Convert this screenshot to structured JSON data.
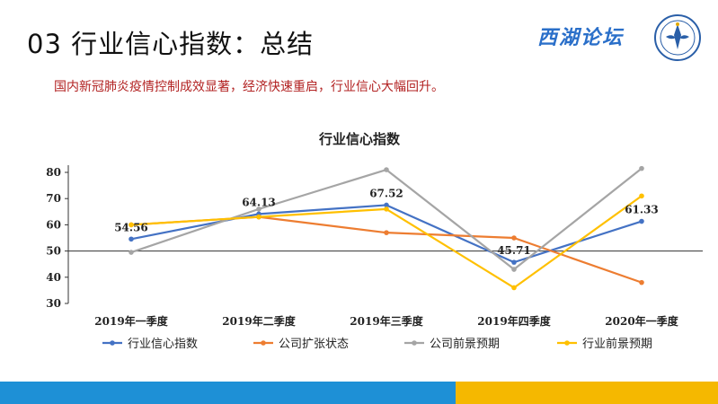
{
  "slide": {
    "title": "03 行业信心指数：总结",
    "subtitle": "国内新冠肺炎疫情控制成效显著，经济快速重启，行业信心大幅回升。",
    "brand": "西湖论坛"
  },
  "chart_data": {
    "type": "line",
    "title": "行业信心指数",
    "categories": [
      "2019年一季度",
      "2019年二季度",
      "2019年三季度",
      "2019年四季度",
      "2020年一季度"
    ],
    "ylim": [
      30,
      80
    ],
    "yticks": [
      30,
      40,
      50,
      60,
      70,
      80
    ],
    "grid": false,
    "legend_position": "bottom",
    "series": [
      {
        "name": "行业信心指数",
        "color": "#4472c4",
        "values": [
          54.56,
          64.13,
          67.52,
          45.71,
          61.33
        ],
        "labels": [
          "54.56",
          "64.13",
          "67.52",
          "45.71",
          "61.33"
        ]
      },
      {
        "name": "公司扩张状态",
        "color": "#ed7d31",
        "values": [
          60,
          63,
          57,
          55,
          38
        ]
      },
      {
        "name": "公司前景预期",
        "color": "#a5a5a5",
        "values": [
          49.5,
          66,
          81,
          43,
          81.5
        ]
      },
      {
        "name": "行业前景预期",
        "color": "#ffc000",
        "values": [
          60,
          63,
          66,
          36,
          71
        ]
      }
    ]
  }
}
